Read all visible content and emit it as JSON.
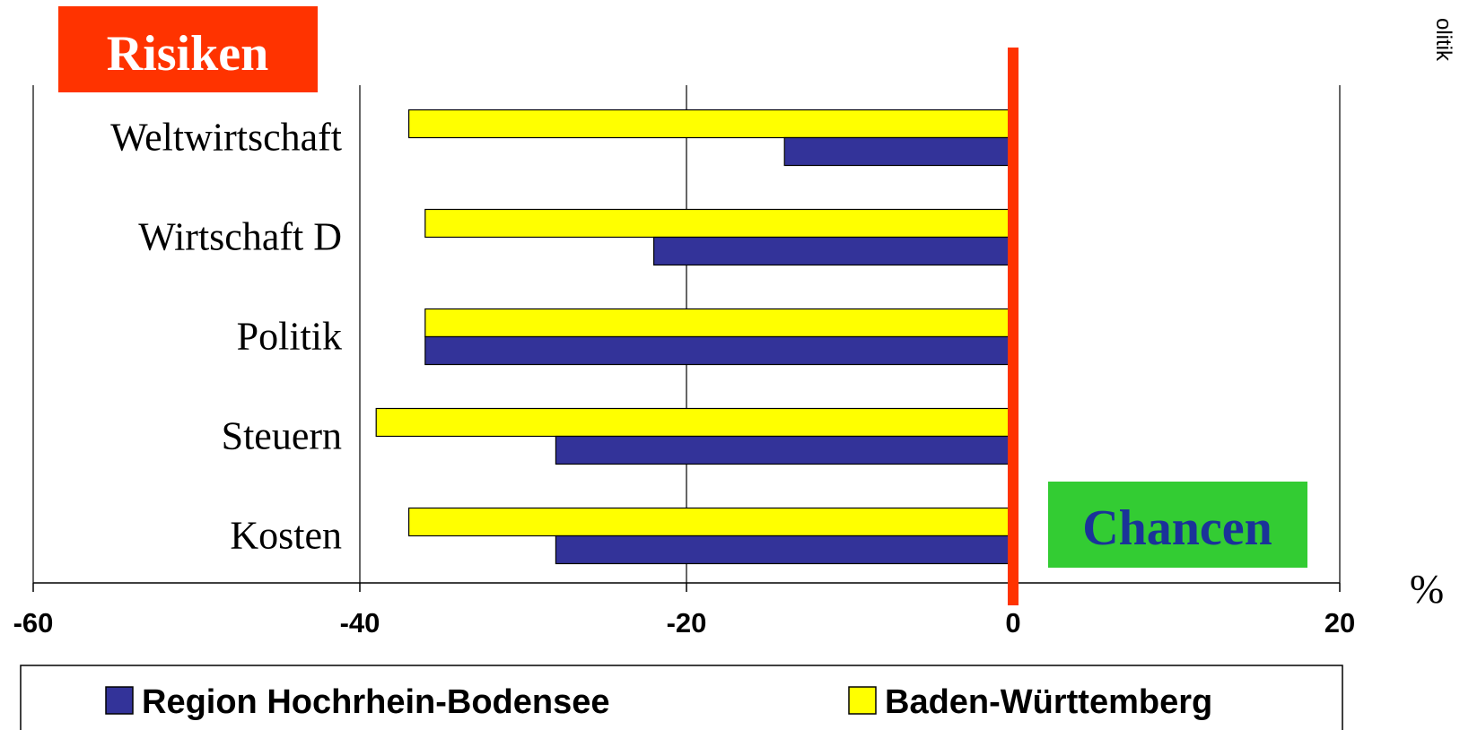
{
  "chart_data": {
    "type": "bar",
    "orientation": "horizontal",
    "categories": [
      "Weltwirtschaft",
      "Wirtschaft D",
      "Politik",
      "Steuern",
      "Kosten"
    ],
    "series": [
      {
        "name": "Region Hochrhein-Bodensee",
        "color": "#333399",
        "values": [
          -14,
          -22,
          -36,
          -28,
          -28
        ]
      },
      {
        "name": "Baden-Württemberg",
        "color": "#FFFF00",
        "values": [
          -37,
          -36,
          -36,
          -39,
          -37
        ]
      }
    ],
    "xlim": [
      -60,
      20
    ],
    "xticks": [
      "-60",
      "-40",
      "-20",
      "0",
      "20"
    ],
    "grid": true,
    "legend_position": "bottom",
    "unit_label": "%",
    "zero_line_color": "#FF3300",
    "annotations": {
      "risks": {
        "text": "Risiken",
        "bg": "#FF3300",
        "color": "#FFFFFF"
      },
      "chances": {
        "text": "Chancen",
        "bg": "#33CC33",
        "color": "#1A3399"
      }
    },
    "edge_text": "olitik"
  }
}
